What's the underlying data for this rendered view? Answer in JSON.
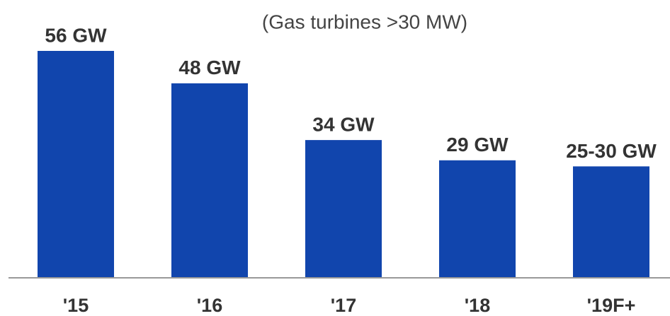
{
  "chart_data": {
    "type": "bar",
    "title": "(Gas turbines >30 MW)",
    "categories": [
      "'15",
      "'16",
      "'17",
      "'18",
      "'19F+"
    ],
    "values": [
      56,
      48,
      34,
      29,
      27.5
    ],
    "value_labels": [
      "56 GW",
      "48 GW",
      "34 GW",
      "29 GW",
      "25-30 GW"
    ],
    "color": "#1145ad"
  }
}
